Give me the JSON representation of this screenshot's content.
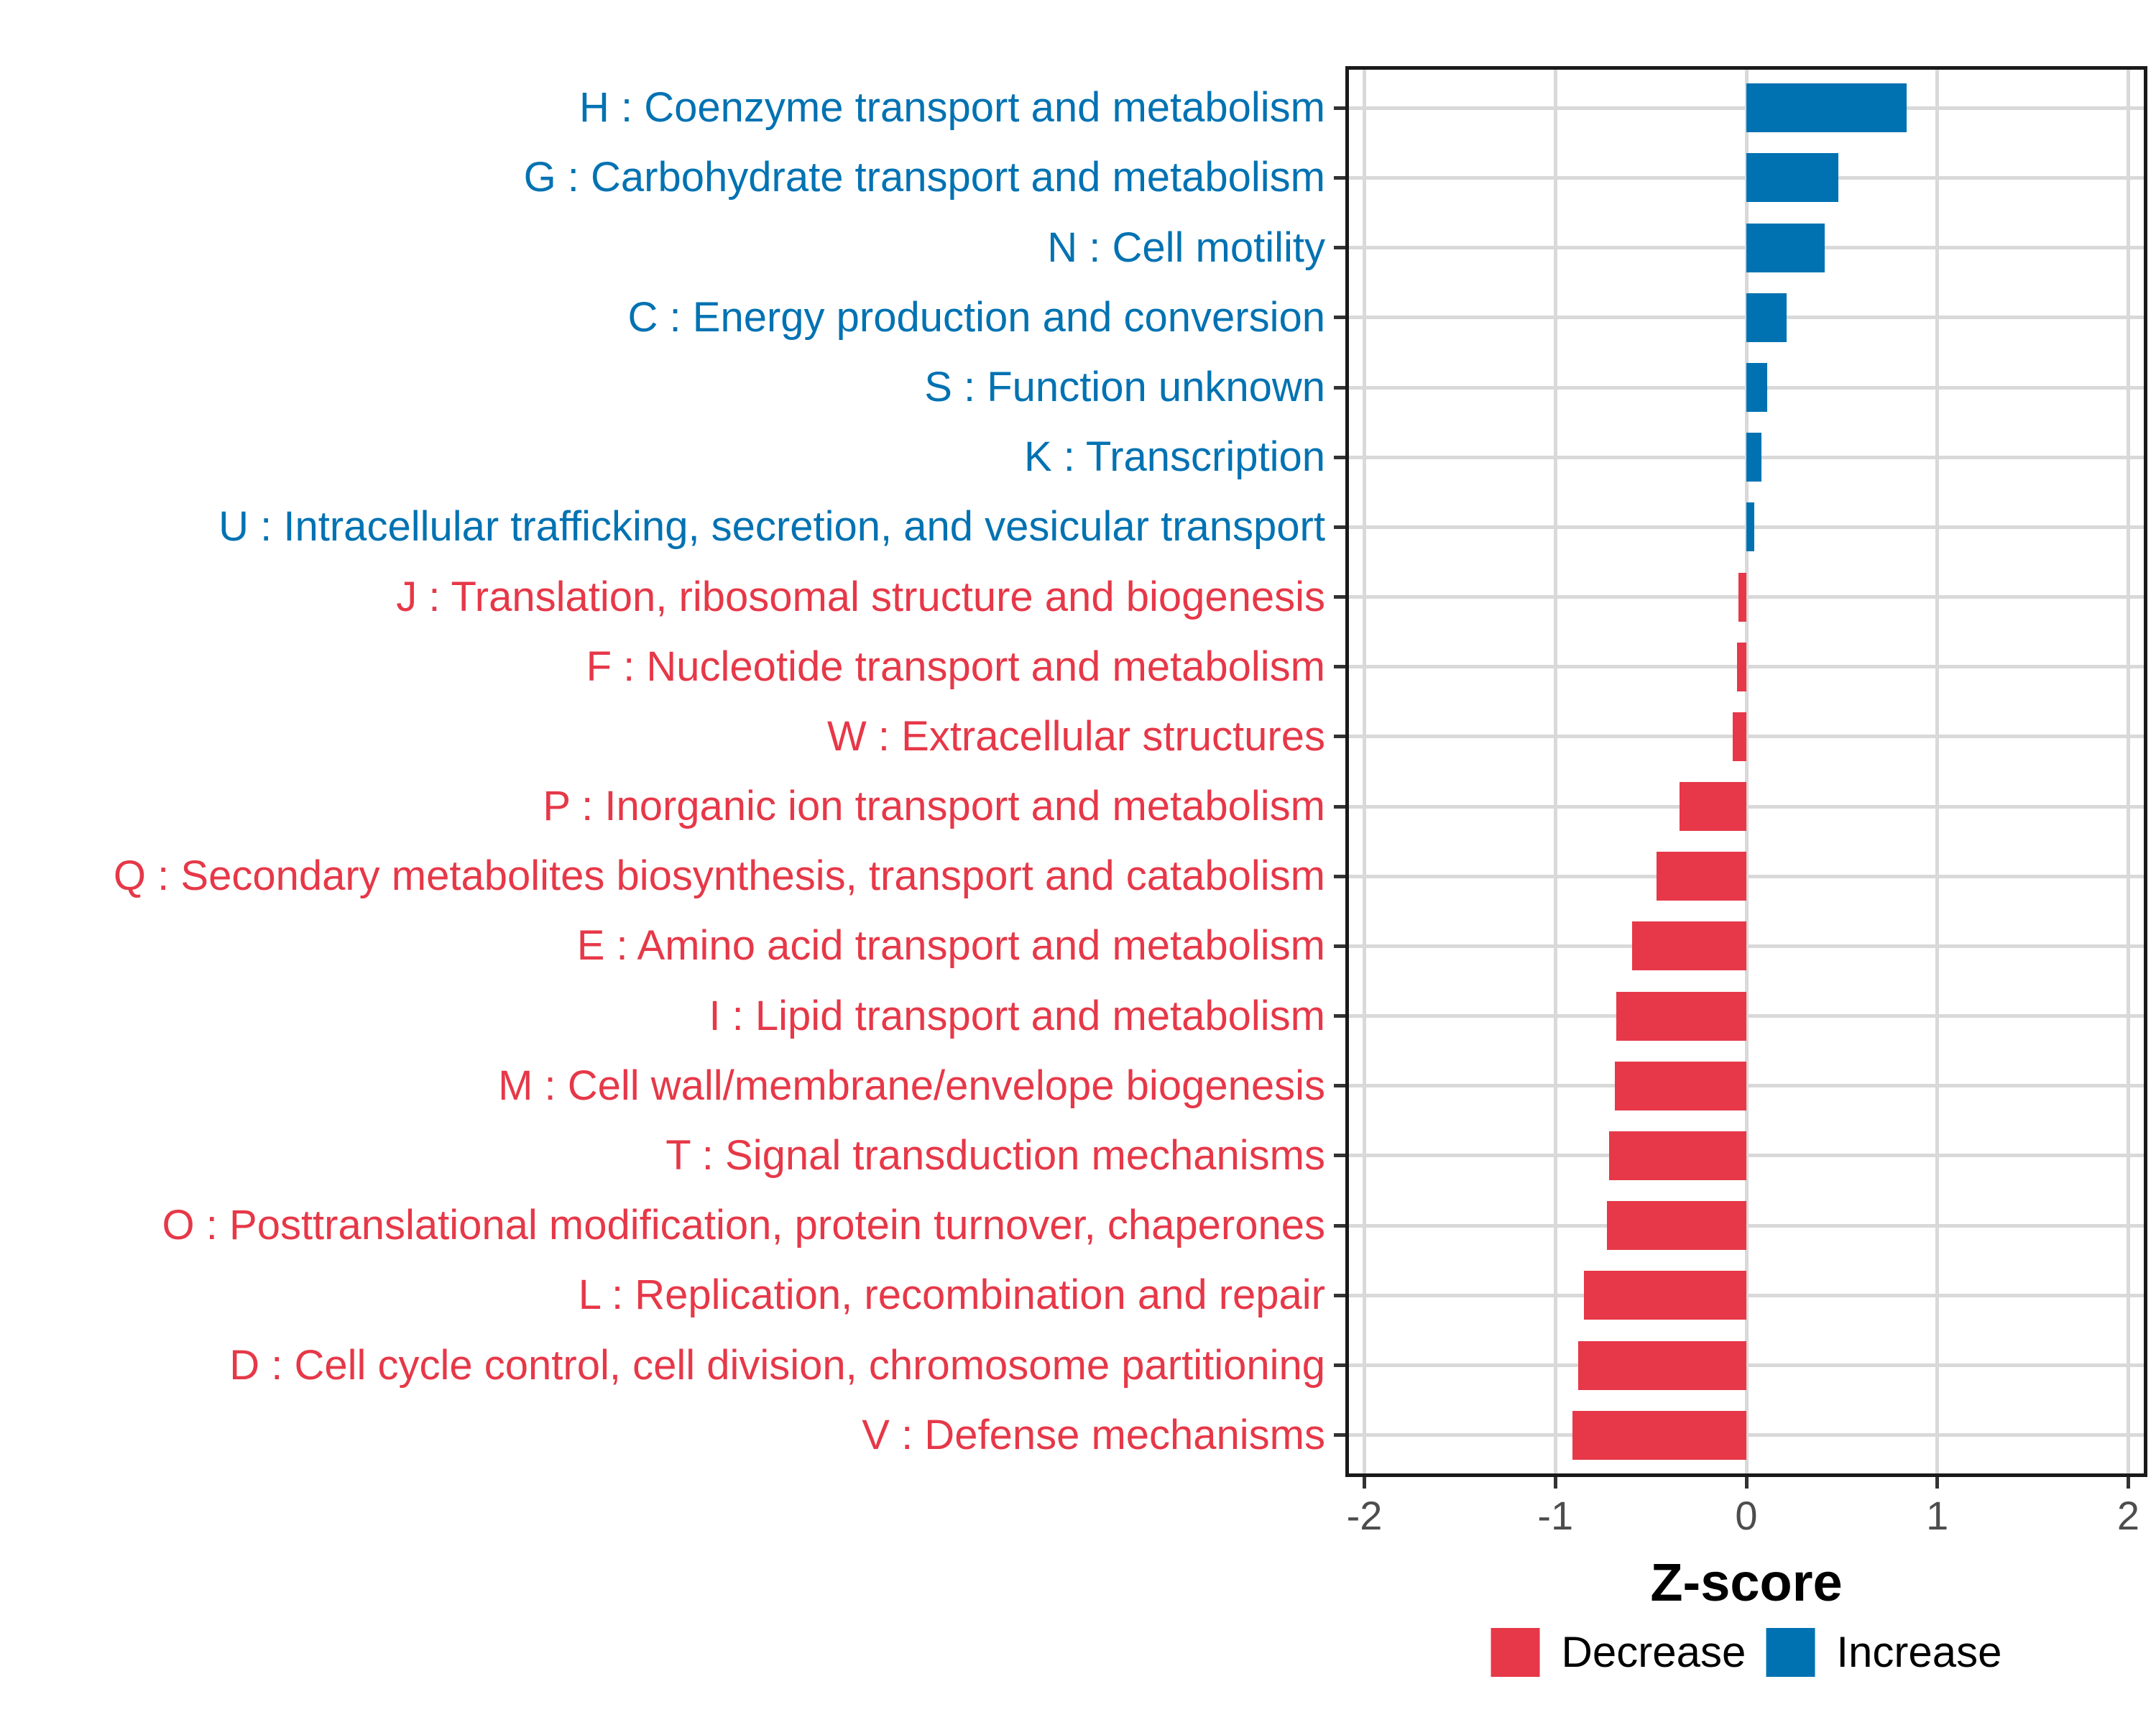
{
  "chart_data": {
    "type": "bar",
    "orientation": "horizontal",
    "title": "",
    "xlabel": "Z-score",
    "ylabel": "",
    "xlim": [
      -2.1,
      2.1
    ],
    "x_ticks": [
      -2,
      -1,
      0,
      1,
      2
    ],
    "grid": "major-on",
    "legend_position": "bottom",
    "groups": [
      {
        "name": "Decrease",
        "color": "#E63848"
      },
      {
        "name": "Increase",
        "color": "#0072B2"
      }
    ],
    "bars": [
      {
        "label": "H : Coenzyme transport and metabolism",
        "value": 0.84,
        "group": "Increase"
      },
      {
        "label": "G : Carbohydrate transport and metabolism",
        "value": 0.48,
        "group": "Increase"
      },
      {
        "label": "N : Cell motility",
        "value": 0.41,
        "group": "Increase"
      },
      {
        "label": "C : Energy production and conversion",
        "value": 0.21,
        "group": "Increase"
      },
      {
        "label": "S : Function unknown",
        "value": 0.11,
        "group": "Increase"
      },
      {
        "label": "K : Transcription",
        "value": 0.08,
        "group": "Increase"
      },
      {
        "label": "U : Intracellular trafficking, secretion, and vesicular transport",
        "value": 0.04,
        "group": "Increase"
      },
      {
        "label": "J : Translation, ribosomal structure and biogenesis",
        "value": -0.04,
        "group": "Decrease"
      },
      {
        "label": "F : Nucleotide transport and metabolism",
        "value": -0.05,
        "group": "Decrease"
      },
      {
        "label": "W : Extracellular structures",
        "value": -0.07,
        "group": "Decrease"
      },
      {
        "label": "P : Inorganic ion transport and metabolism",
        "value": -0.35,
        "group": "Decrease"
      },
      {
        "label": "Q : Secondary metabolites biosynthesis, transport and catabolism",
        "value": -0.47,
        "group": "Decrease"
      },
      {
        "label": "E : Amino acid transport and metabolism",
        "value": -0.6,
        "group": "Decrease"
      },
      {
        "label": "I : Lipid transport and metabolism",
        "value": -0.68,
        "group": "Decrease"
      },
      {
        "label": "M : Cell wall/membrane/envelope biogenesis",
        "value": -0.69,
        "group": "Decrease"
      },
      {
        "label": "T : Signal transduction mechanisms",
        "value": -0.72,
        "group": "Decrease"
      },
      {
        "label": "O : Posttranslational modification, protein turnover, chaperones",
        "value": -0.73,
        "group": "Decrease"
      },
      {
        "label": "L : Replication, recombination and repair",
        "value": -0.85,
        "group": "Decrease"
      },
      {
        "label": "D : Cell cycle control, cell division, chromosome partitioning",
        "value": -0.88,
        "group": "Decrease"
      },
      {
        "label": "V : Defense mechanisms",
        "value": -0.91,
        "group": "Decrease"
      }
    ]
  },
  "styles": {
    "grid_color": "#D9D9D9",
    "panel_border_color": "#1A1A1A",
    "tick_color": "#333333",
    "axis_tick_text_color": "#4D4D4D",
    "increase_color": "#0072B2",
    "decrease_color": "#E63848"
  }
}
